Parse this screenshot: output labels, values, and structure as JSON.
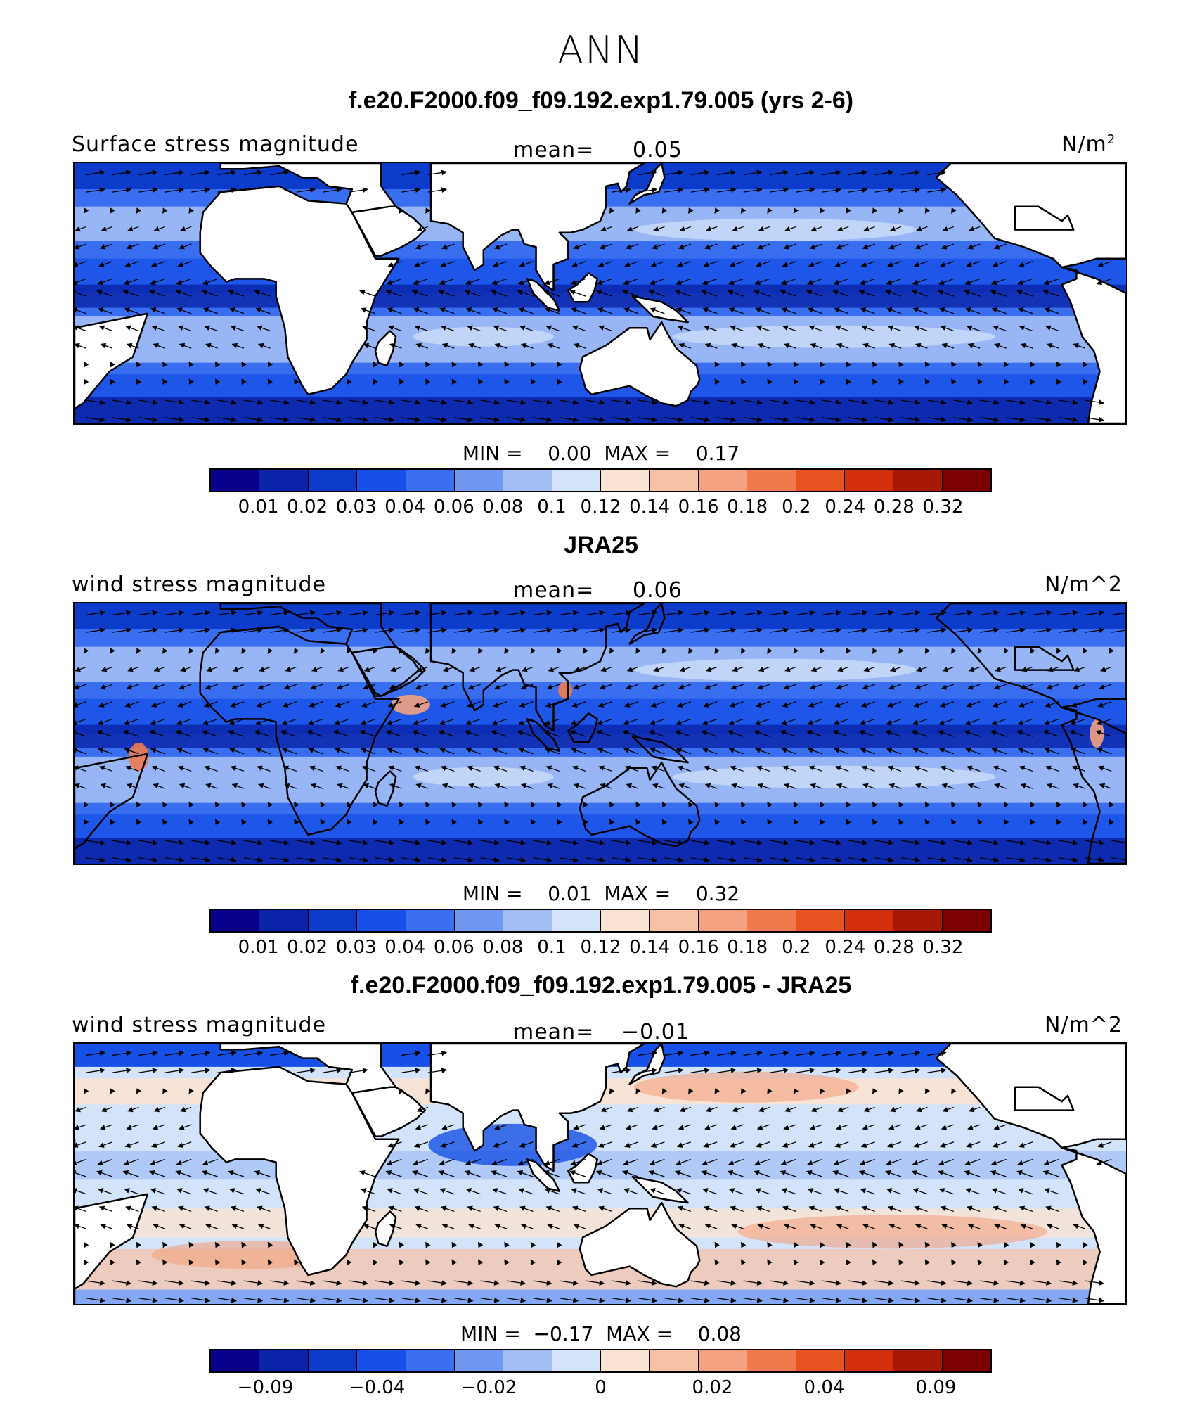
{
  "page_title": "ANN",
  "units_superscript": "2",
  "chart_data": [
    {
      "type": "heatmap",
      "title": "f.e20.F2000.f09_f09.192.exp1.79.005 (yrs 2-6)",
      "field_label": "Surface stress magnitude",
      "units": "N/m",
      "mean_label": "mean=",
      "mean_value": "0.05",
      "min_label": "MIN =",
      "min_value": "0.00",
      "max_label": "MAX =",
      "max_value": "0.17",
      "colorbar_levels": [
        "0.01",
        "0.02",
        "0.03",
        "0.04",
        "0.06",
        "0.08",
        "0.1",
        "0.12",
        "0.14",
        "0.16",
        "0.18",
        "0.2",
        "0.24",
        "0.28",
        "0.32"
      ],
      "colorbar_colors": [
        "#08008a",
        "#0a23a8",
        "#0c3cc9",
        "#1650e6",
        "#3a6ef0",
        "#7098f2",
        "#a3bdf5",
        "#d3e3f9",
        "#fbe3d3",
        "#f8c2a6",
        "#f4a27f",
        "#f07a4e",
        "#e95322",
        "#d22f0a",
        "#a81806",
        "#7d0000"
      ],
      "field": "model"
    },
    {
      "type": "heatmap",
      "title": "JRA25",
      "field_label": "wind stress magnitude",
      "units": "N/m^2",
      "mean_label": "mean=",
      "mean_value": "0.06",
      "min_label": "MIN =",
      "min_value": "0.01",
      "max_label": "MAX =",
      "max_value": "0.32",
      "colorbar_levels": [
        "0.01",
        "0.02",
        "0.03",
        "0.04",
        "0.06",
        "0.08",
        "0.1",
        "0.12",
        "0.14",
        "0.16",
        "0.18",
        "0.2",
        "0.24",
        "0.28",
        "0.32"
      ],
      "colorbar_colors": [
        "#08008a",
        "#0a23a8",
        "#0c3cc9",
        "#1650e6",
        "#3a6ef0",
        "#7098f2",
        "#a3bdf5",
        "#d3e3f9",
        "#fbe3d3",
        "#f8c2a6",
        "#f4a27f",
        "#f07a4e",
        "#e95322",
        "#d22f0a",
        "#a81806",
        "#7d0000"
      ],
      "field": "obs"
    },
    {
      "type": "heatmap",
      "title": "f.e20.F2000.f09_f09.192.exp1.79.005 - JRA25",
      "field_label": "wind stress magnitude",
      "units": "N/m^2",
      "mean_label": "mean=",
      "mean_value": "−0.01",
      "min_label": "MIN =",
      "min_value": "−0.17",
      "max_label": "MAX =",
      "max_value": "0.08",
      "colorbar_levels": [
        "−0.09",
        "",
        "−0.04",
        "",
        "−0.02",
        "",
        "0",
        "",
        "0.02",
        "",
        "0.04",
        "",
        "0.09"
      ],
      "colorbar_colors": [
        "#08008a",
        "#0a23a8",
        "#0c3cc9",
        "#1650e6",
        "#3a6ef0",
        "#7098f2",
        "#a3bdf5",
        "#d3e3f9",
        "#fbe3d3",
        "#f8c2a6",
        "#f4a27f",
        "#f07a4e",
        "#e95322",
        "#d22f0a",
        "#a81806",
        "#7d0000"
      ],
      "field": "diff"
    }
  ]
}
